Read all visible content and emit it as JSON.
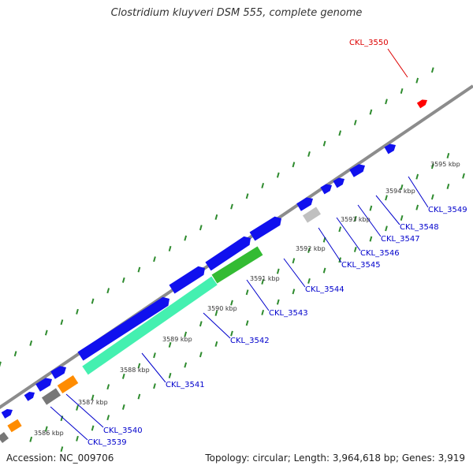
{
  "title": "Clostridium kluyveri DSM 555, complete genome",
  "footer": {
    "accession": "Accession: NC_009706",
    "summary": "Topology: circular; Length: 3,964,618 bp; Genes: 3,919"
  },
  "colors": {
    "backbone": "#8c8c8c",
    "ticks": "#2e8b2e",
    "forward_gene": "#1010ee",
    "reverse_gene_light": "#44f0b0",
    "reverse_gene_green": "#33bb33",
    "rna_orange": "#ff8c00",
    "pseudo_gray": "#777777",
    "highlight": "#ff0000",
    "label_blue": "#0000cc",
    "label_red": "#dd0000"
  },
  "kbp_labels": [
    "3586 kbp",
    "3587 kbp",
    "3588 kbp",
    "3589 kbp",
    "3590 kbp",
    "3591 kbp",
    "3592 kbp",
    "3593 kbp",
    "3594 kbp",
    "3595 kbp"
  ],
  "loci": [
    {
      "name": "CKL_3539",
      "color": "blue"
    },
    {
      "name": "CKL_3540",
      "color": "blue"
    },
    {
      "name": "CKL_3541",
      "color": "blue"
    },
    {
      "name": "CKL_3542",
      "color": "blue"
    },
    {
      "name": "CKL_3543",
      "color": "blue"
    },
    {
      "name": "CKL_3544",
      "color": "blue"
    },
    {
      "name": "CKL_3545",
      "color": "blue"
    },
    {
      "name": "CKL_3546",
      "color": "blue"
    },
    {
      "name": "CKL_3547",
      "color": "blue"
    },
    {
      "name": "CKL_3548",
      "color": "blue"
    },
    {
      "name": "CKL_3549",
      "color": "blue"
    },
    {
      "name": "CKL_3550",
      "color": "red"
    }
  ]
}
